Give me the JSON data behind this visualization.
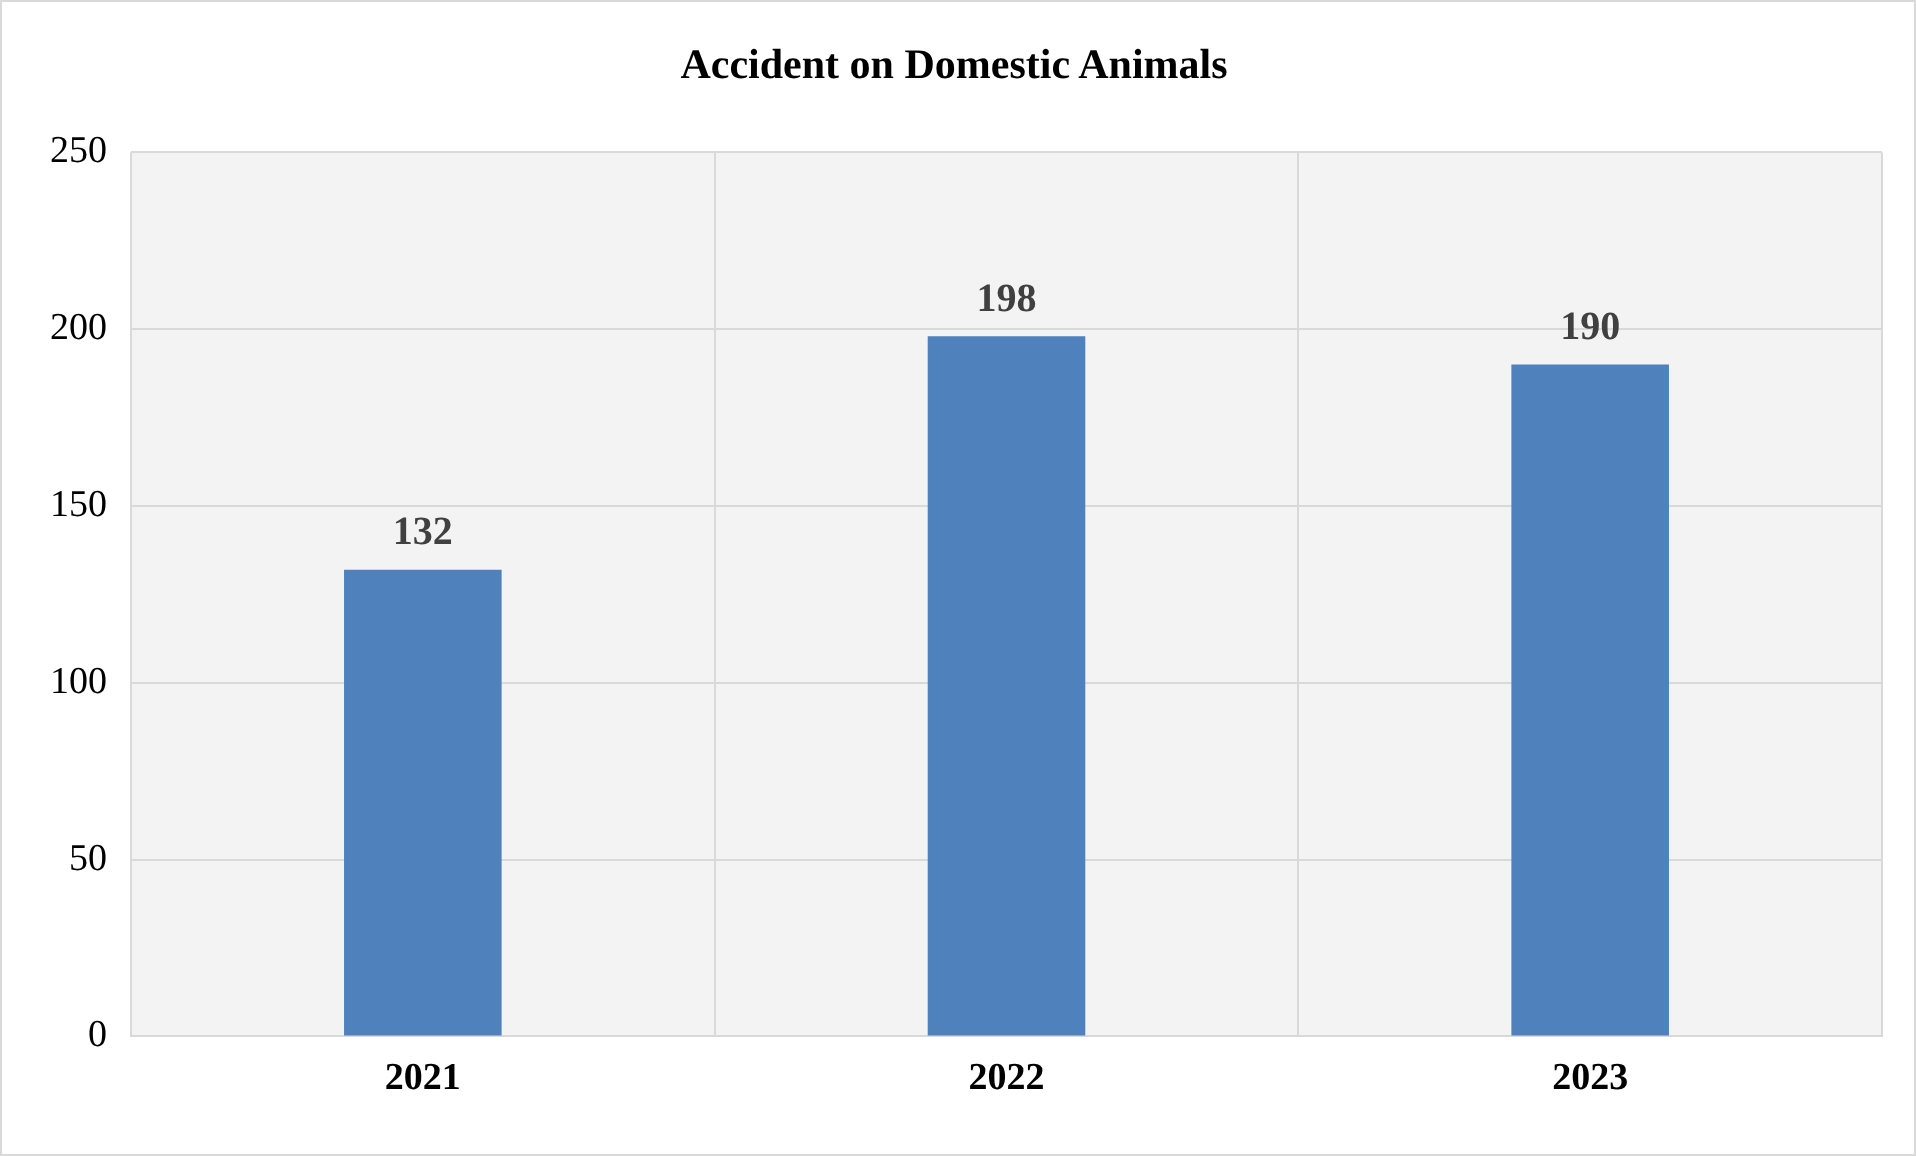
{
  "chart_data": {
    "type": "bar",
    "title": "Accident on Domestic Animals",
    "categories": [
      "2021",
      "2022",
      "2023"
    ],
    "values": [
      132,
      198,
      190
    ],
    "color": "#4f81bd",
    "ylim": [
      0,
      250
    ],
    "yticks": [
      0,
      50,
      100,
      150,
      200,
      250
    ],
    "grid": true,
    "legend": false,
    "data_labels": true
  }
}
